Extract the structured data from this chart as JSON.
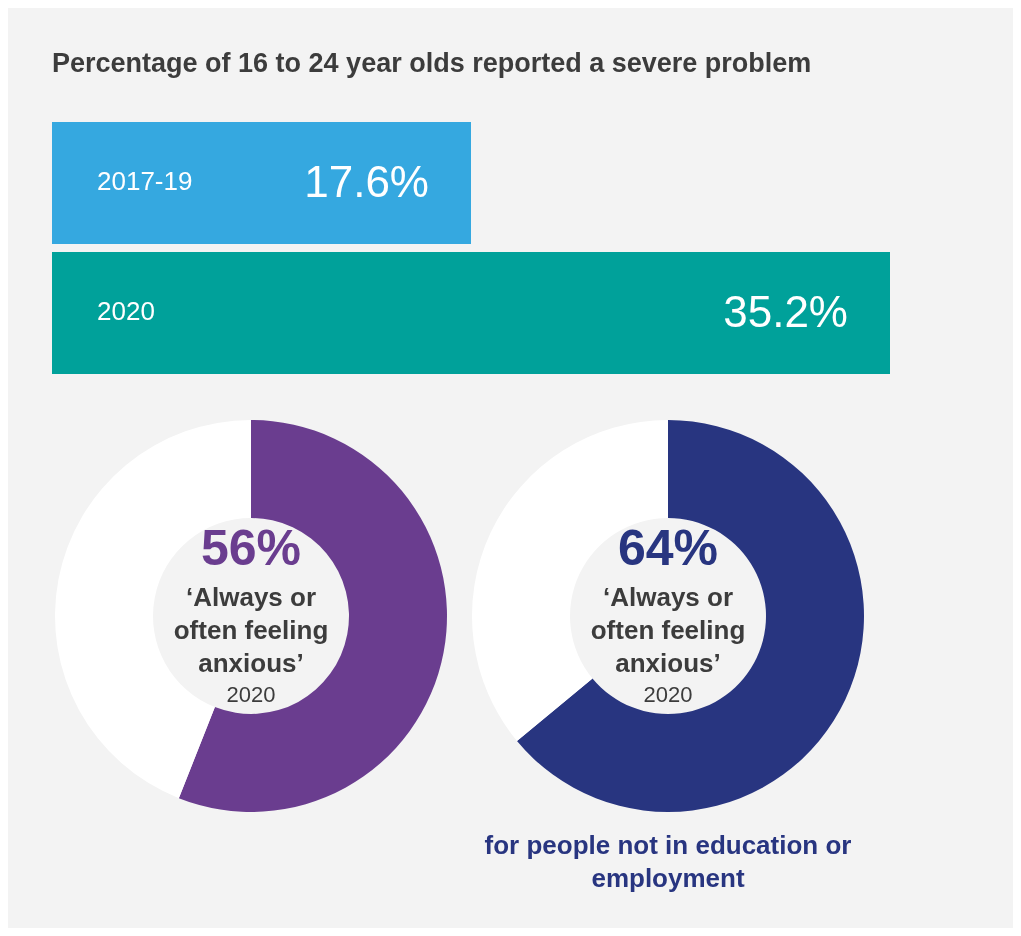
{
  "chart_data": [
    {
      "type": "bar",
      "orientation": "horizontal",
      "title": "Percentage of 16 to 24 year olds reported a severe problem",
      "categories": [
        "2017-19",
        "2020"
      ],
      "values": [
        17.6,
        35.2
      ],
      "colors": [
        "#35a8e0",
        "#00a19a"
      ],
      "value_labels": [
        "17.6%",
        "35.2%"
      ]
    },
    {
      "type": "donut",
      "categories": [
        null,
        null
      ],
      "values": [
        56,
        44
      ],
      "colors": [
        "#6a3d8f",
        "#ffffff"
      ],
      "value_labels": [
        "56%",
        null
      ],
      "annotations": [
        "‘Always or often feeling anxious’",
        "2020"
      ]
    },
    {
      "type": "donut",
      "categories": [
        null,
        null
      ],
      "values": [
        64,
        36
      ],
      "colors": [
        "#283580",
        "#ffffff"
      ],
      "value_labels": [
        "64%",
        null
      ],
      "annotations": [
        "‘Always or often feeling anxious’",
        "2020",
        "for people not in education or employment"
      ]
    }
  ]
}
